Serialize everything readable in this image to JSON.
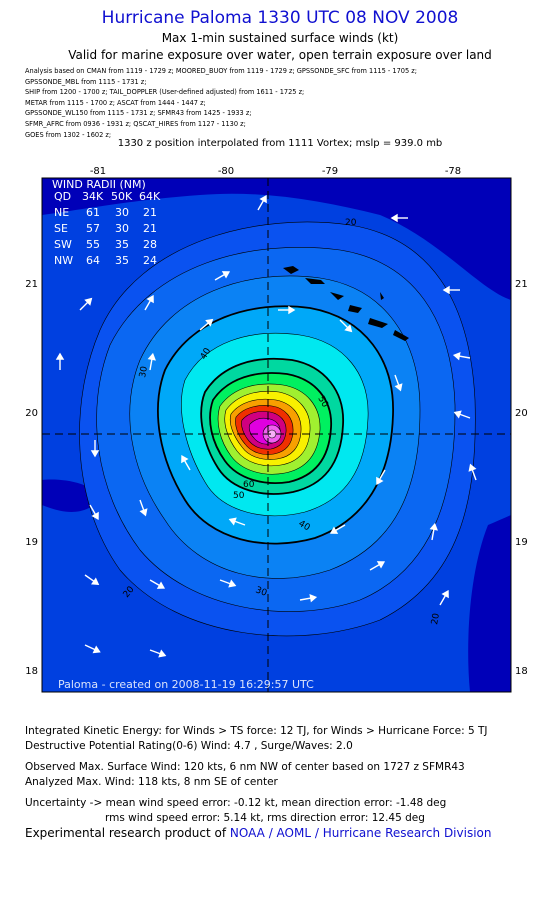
{
  "title": "Hurricane Paloma 1330 UTC 08 NOV 2008",
  "subtitle_1": "Max 1-min sustained surface winds (kt)",
  "subtitle_2": "Valid for marine exposure over water, open terrain exposure over land",
  "sources": [
    "Analysis based on  CMAN from 1119 - 1729 z;  MOORED_BUOY from 1119 - 1729 z;  GPSSONDE_SFC from 1115 - 1705 z;",
    "GPSSONDE_MBL from 1115 - 1731 z;",
    "SHIP from 1200 - 1700 z;  TAIL_DOPPLER (User-defined adjusted) from 1611 - 1725 z;",
    "METAR from 1115 - 1700 z;  ASCAT from 1444 - 1447 z;",
    "GPSSONDE_WL150 from 1115 - 1731 z;  SFMR43 from 1425 - 1933 z;",
    "SFMR_AFRC from 0936 - 1931 z;  QSCAT_HIRES from 1127 - 1130 z;",
    "GOES from 1302 - 1602 z;"
  ],
  "position_note": "1330 z position interpolated from 1111 Vortex; mslp = 939.0 mb",
  "map": {
    "lon_ticks": [
      "-81",
      "-80",
      "-79",
      "-78"
    ],
    "lat_ticks": [
      "21",
      "20",
      "19",
      "18"
    ],
    "lon_range": [
      -81.5,
      -77.5
    ],
    "lat_range": [
      17.8,
      21.8
    ],
    "center": {
      "lon": -79.55,
      "lat": 19.82
    },
    "contour_labels": [
      "20",
      "20",
      "30",
      "30",
      "40",
      "40",
      "50",
      "50",
      "60",
      "20"
    ],
    "ocean_color": "#0040e0",
    "land_color": "#0000a8"
  },
  "wind_radii": {
    "title": "WIND RADII (NM)",
    "header": [
      "QD",
      "34K",
      "50K",
      "64K"
    ],
    "rows": [
      [
        "NE",
        "61",
        "30",
        "21"
      ],
      [
        "SE",
        "57",
        "30",
        "21"
      ],
      [
        "SW",
        "55",
        "35",
        "28"
      ],
      [
        "NW",
        "64",
        "35",
        "24"
      ]
    ]
  },
  "footer_stamp": "Paloma - created on 2008-11-19 16:29:57 UTC",
  "stats": {
    "ike": "Integrated Kinetic Energy:  for Winds > TS force: 12 TJ,  for Winds > Hurricane Force: 5 TJ",
    "dpr": "Destructive Potential Rating(0-6)   Wind: 4.7 , Surge/Waves: 2.0",
    "observed": "Observed Max. Surface Wind: 120 kts, 6 nm NW of center based on 1727 z SFMR43",
    "analyzed": "Analyzed Max. Wind: 118 kts, 8 nm SE of center",
    "uncertainty_1": "Uncertainty -> mean wind speed error:  -0.12 kt,   mean direction error:  -1.48 deg",
    "uncertainty_2": "rms wind speed error: 5.14 kt,   rms direction error: 12.45 deg"
  },
  "credit_prefix": "Experimental research product of ",
  "credit_org": "NOAA / AOML / Hurricane Research Division"
}
